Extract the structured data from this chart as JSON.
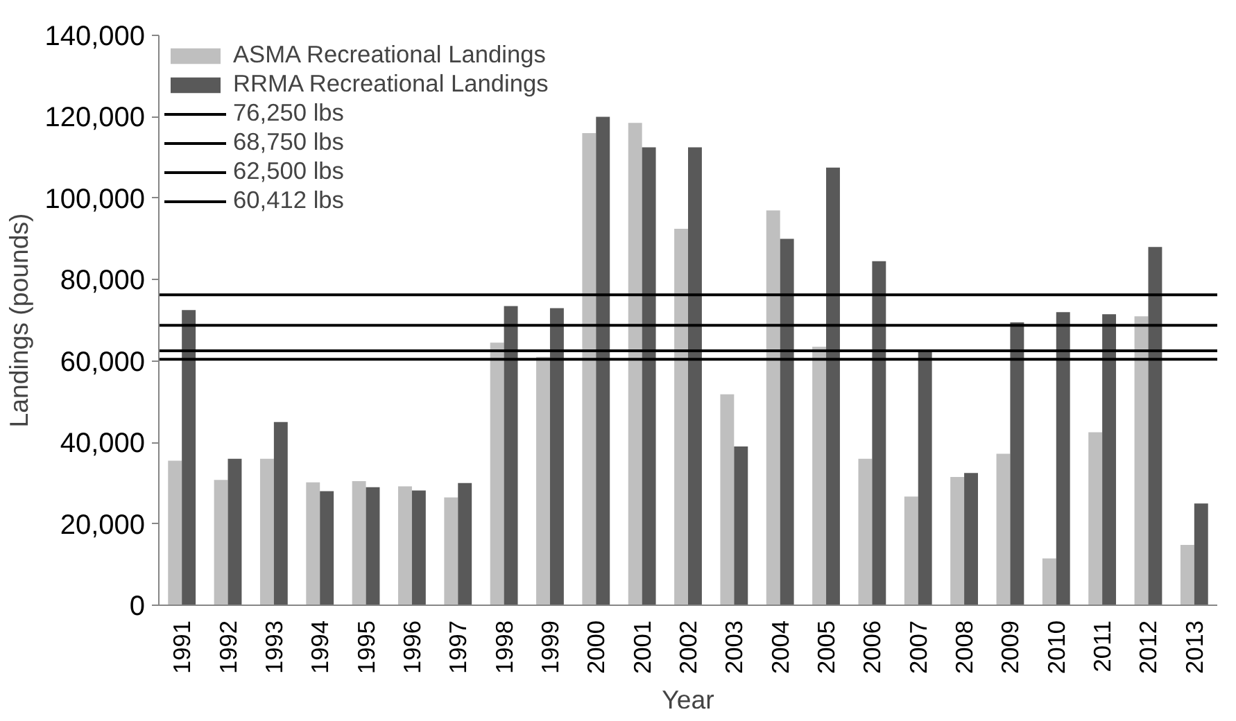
{
  "chart_data": {
    "type": "bar",
    "xlabel": "Year",
    "ylabel": "Landings (pounds)",
    "categories": [
      "1991",
      "1992",
      "1993",
      "1994",
      "1995",
      "1996",
      "1997",
      "1998",
      "1999",
      "2000",
      "2001",
      "2002",
      "2003",
      "2004",
      "2005",
      "2006",
      "2007",
      "2008",
      "2009",
      "2010",
      "2011",
      "2012",
      "2013"
    ],
    "series": [
      {
        "name": "ASMA Recreational Landings",
        "color": "#bfbfbf",
        "values": [
          35500,
          30800,
          36000,
          30200,
          30500,
          29200,
          26500,
          64500,
          61000,
          116000,
          118500,
          92500,
          51800,
          97000,
          63500,
          36000,
          26700,
          31500,
          37200,
          11500,
          42500,
          71000,
          14800
        ]
      },
      {
        "name": "RRMA Recreational Landings",
        "color": "#595959",
        "values": [
          72500,
          36000,
          45000,
          28000,
          29000,
          28200,
          30000,
          73500,
          73000,
          120000,
          112500,
          112500,
          39000,
          90000,
          107500,
          84500,
          62500,
          32500,
          69500,
          72000,
          71500,
          88000,
          25000
        ]
      }
    ],
    "ref_lines": [
      {
        "axis": "y",
        "value": 76250,
        "label": "76,250 lbs",
        "color": "#000000",
        "line_style": "solid"
      },
      {
        "axis": "y",
        "value": 68750,
        "label": "68,750 lbs",
        "color": "#000000",
        "line_style": "solid"
      },
      {
        "axis": "y",
        "value": 62500,
        "label": "62,500 lbs",
        "color": "#000000",
        "line_style": "solid"
      },
      {
        "axis": "y",
        "value": 60412,
        "label": "60,412 lbs",
        "color": "#000000",
        "line_style": "solid"
      }
    ],
    "ylim": [
      0,
      140000
    ],
    "yticks": [
      {
        "value": 0,
        "label": "0"
      },
      {
        "value": 20000,
        "label": "20,000"
      },
      {
        "value": 40000,
        "label": "40,000"
      },
      {
        "value": 60000,
        "label": "60,000"
      },
      {
        "value": 80000,
        "label": "80,000"
      },
      {
        "value": 100000,
        "label": "100,000"
      },
      {
        "value": 120000,
        "label": "120,000"
      },
      {
        "value": 140000,
        "label": "140,000"
      }
    ],
    "grid": false,
    "legend": "top left"
  }
}
